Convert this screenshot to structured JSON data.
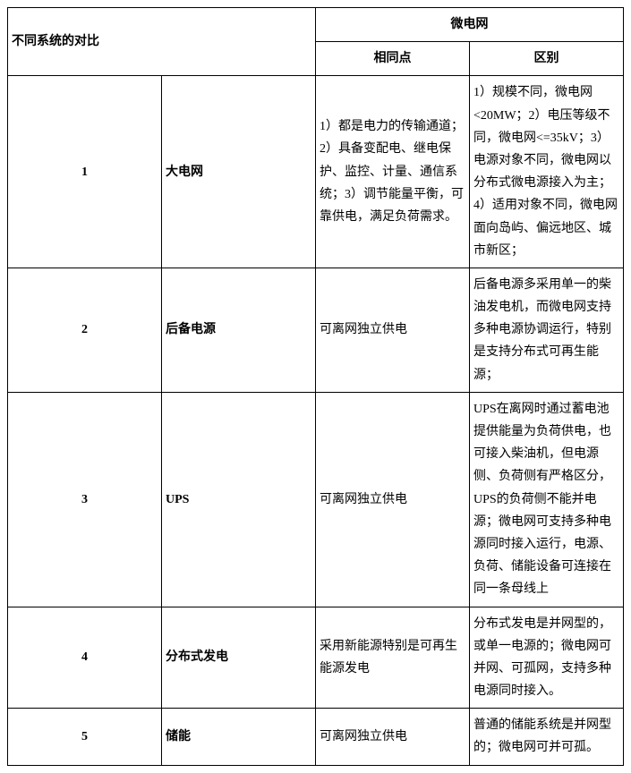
{
  "headers": {
    "col1": "不同系统的对比",
    "col2": "微电网",
    "sub1": "相同点",
    "sub2": "区别"
  },
  "rows": [
    {
      "num": "1",
      "name": "大电网",
      "same": "1）都是电力的传输通道；2）具备变配电、继电保护、监控、计量、通信系统；3）调节能量平衡，可靠供电，满足负荷需求。",
      "diff": "1）规模不同，微电网<20MW；2）电压等级不同，微电网<=35kV；3）电源对象不同，微电网以分布式微电源接入为主；4）适用对象不同，微电网面向岛屿、偏远地区、城市新区；"
    },
    {
      "num": "2",
      "name": "后备电源",
      "same": "可离网独立供电",
      "diff": "后备电源多采用单一的柴油发电机，而微电网支持多种电源协调运行，特别是支持分布式可再生能源；"
    },
    {
      "num": "3",
      "name": "UPS",
      "same": "可离网独立供电",
      "diff": "UPS在离网时通过蓄电池提供能量为负荷供电，也可接入柴油机，但电源侧、负荷侧有严格区分，UPS的负荷侧不能并电源；微电网可支持多种电源同时接入运行，电源、负荷、储能设备可连接在同一条母线上"
    },
    {
      "num": "4",
      "name": "分布式发电",
      "same": "采用新能源特别是可再生能源发电",
      "diff": "分布式发电是并网型的，或单一电源的；微电网可并网、可孤网，支持多种电源同时接入。"
    },
    {
      "num": "5",
      "name": "储能",
      "same": "可离网独立供电",
      "diff": "普通的储能系统是并网型的；微电网可并可孤。"
    }
  ]
}
